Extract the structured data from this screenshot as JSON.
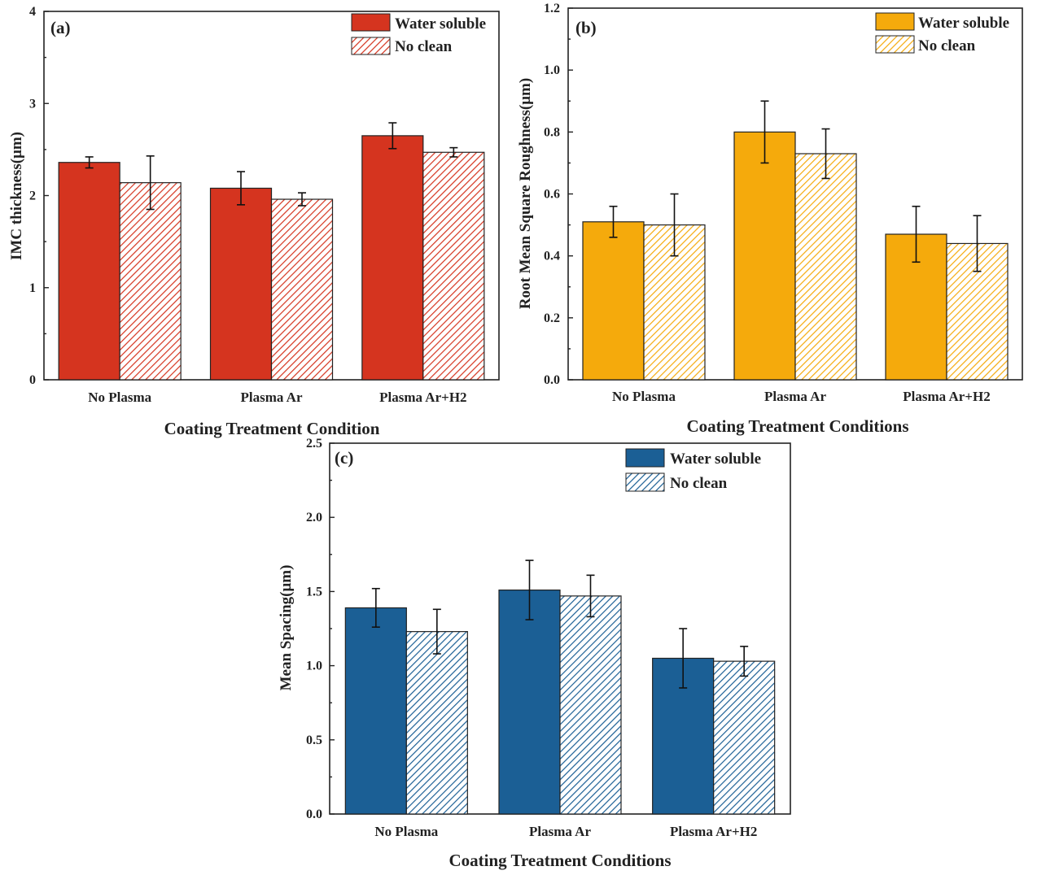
{
  "chart_data": [
    {
      "panel": "(a)",
      "type": "bar",
      "ylabel": "IMC thickness(μm)",
      "xlabel": "Coating Treatment Condition",
      "categories": [
        "No Plasma",
        "Plasma Ar",
        "Plasma Ar+H2"
      ],
      "ylim": [
        0,
        4
      ],
      "yticks": [
        0,
        1,
        2,
        3,
        4
      ],
      "ytick_labels": [
        "0",
        "1",
        "2",
        "3",
        "4"
      ],
      "color": "#d5341f",
      "legend_position": "top-right",
      "series": [
        {
          "name": "Water soluble",
          "pattern": "solid",
          "values": [
            2.36,
            2.08,
            2.65
          ],
          "errors": [
            0.06,
            0.18,
            0.14
          ]
        },
        {
          "name": "No clean",
          "pattern": "hatched",
          "values": [
            2.14,
            1.96,
            2.47
          ],
          "errors": [
            0.29,
            0.07,
            0.05
          ]
        }
      ]
    },
    {
      "panel": "(b)",
      "type": "bar",
      "ylabel": "Root Mean Square Roughness(μm)",
      "xlabel": "Coating Treatment Conditions",
      "categories": [
        "No Plasma",
        "Plasma Ar",
        "Plasma Ar+H2"
      ],
      "ylim": [
        0,
        1.2
      ],
      "yticks": [
        0,
        0.2,
        0.4,
        0.6,
        0.8,
        1.0,
        1.2
      ],
      "ytick_labels": [
        "0.0",
        "0.2",
        "0.4",
        "0.6",
        "0.8",
        "1.0",
        "1.2"
      ],
      "color": "#f5aa0c",
      "legend_position": "top-right",
      "series": [
        {
          "name": "Water soluble",
          "pattern": "solid",
          "values": [
            0.51,
            0.8,
            0.47
          ],
          "errors": [
            0.05,
            0.1,
            0.09
          ]
        },
        {
          "name": "No clean",
          "pattern": "hatched",
          "values": [
            0.5,
            0.73,
            0.44
          ],
          "errors": [
            0.1,
            0.08,
            0.09
          ]
        }
      ]
    },
    {
      "panel": "(c)",
      "type": "bar",
      "ylabel": "Mean Spacing(μm)",
      "xlabel": "Coating Treatment Conditions",
      "categories": [
        "No Plasma",
        "Plasma Ar",
        "Plasma Ar+H2"
      ],
      "ylim": [
        0,
        2.5
      ],
      "yticks": [
        0,
        0.5,
        1.0,
        1.5,
        2.0,
        2.5
      ],
      "ytick_labels": [
        "0.0",
        "0.5",
        "1.0",
        "1.5",
        "2.0",
        "2.5"
      ],
      "color": "#1b5f95",
      "legend_position": "top-right",
      "series": [
        {
          "name": "Water soluble",
          "pattern": "solid",
          "values": [
            1.39,
            1.51,
            1.05
          ],
          "errors": [
            0.13,
            0.2,
            0.2
          ]
        },
        {
          "name": "No clean",
          "pattern": "hatched",
          "values": [
            1.23,
            1.47,
            1.03
          ],
          "errors": [
            0.15,
            0.14,
            0.1
          ]
        }
      ]
    }
  ]
}
